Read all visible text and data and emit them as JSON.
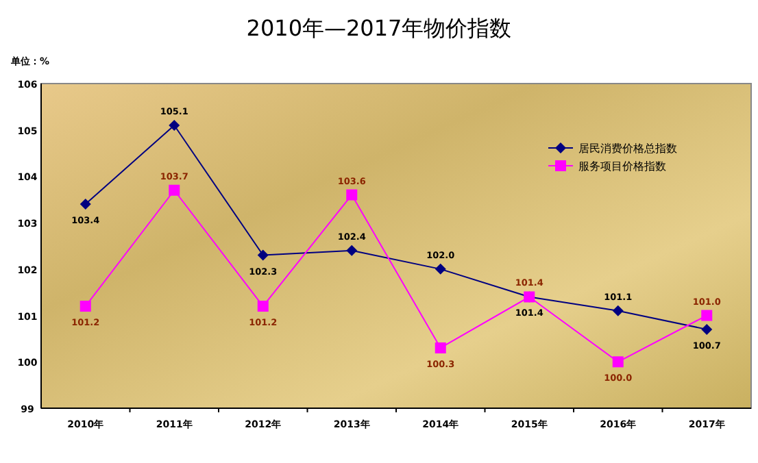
{
  "chart_data": {
    "type": "line",
    "title": "2010年—2017年物价指数",
    "annotations": [
      "单位：%"
    ],
    "categories": [
      "2010年",
      "2011年",
      "2012年",
      "2013年",
      "2014年",
      "2015年",
      "2016年",
      "2017年"
    ],
    "series": [
      {
        "name": "居民消费价格总指数",
        "color": "#000080",
        "marker": "diamond",
        "values": [
          103.4,
          105.1,
          102.3,
          102.4,
          102.0,
          101.4,
          101.1,
          100.7
        ],
        "value_labels": [
          "103.4",
          "105.1",
          "102.3",
          "102.4",
          "102.0",
          "101.4",
          "101.1",
          "100.7"
        ]
      },
      {
        "name": "服务项目价格指数",
        "color": "#ff00ff",
        "marker": "square",
        "values": [
          101.2,
          103.7,
          101.2,
          103.6,
          100.3,
          101.4,
          100.0,
          101.0
        ],
        "value_labels": [
          "101.2",
          "103.7",
          "101.2",
          "103.6",
          "100.3",
          "101.4",
          "100.0",
          "101.0"
        ]
      }
    ],
    "ylim": [
      99,
      106
    ],
    "yticks": [
      99,
      100,
      101,
      102,
      103,
      104,
      105,
      106
    ],
    "grid": false,
    "legend": "top right"
  }
}
